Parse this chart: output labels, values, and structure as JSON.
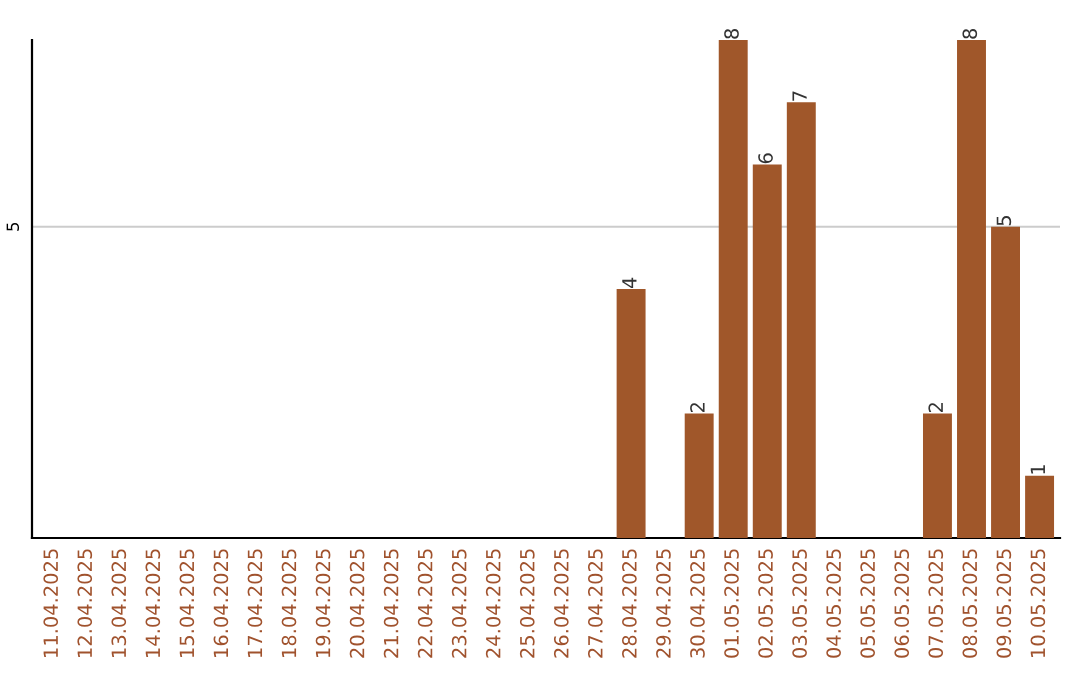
{
  "chart_data": {
    "type": "bar",
    "categories": [
      "11.04.2025",
      "12.04.2025",
      "13.04.2025",
      "14.04.2025",
      "15.04.2025",
      "16.04.2025",
      "17.04.2025",
      "18.04.2025",
      "19.04.2025",
      "20.04.2025",
      "21.04.2025",
      "22.04.2025",
      "23.04.2025",
      "24.04.2025",
      "25.04.2025",
      "26.04.2025",
      "27.04.2025",
      "28.04.2025",
      "29.04.2025",
      "30.04.2025",
      "01.05.2025",
      "02.05.2025",
      "03.05.2025",
      "04.05.2025",
      "05.05.2025",
      "06.05.2025",
      "07.05.2025",
      "08.05.2025",
      "09.05.2025",
      "10.05.2025"
    ],
    "values": [
      null,
      null,
      null,
      null,
      null,
      null,
      null,
      null,
      null,
      null,
      null,
      null,
      null,
      null,
      null,
      null,
      null,
      4,
      null,
      2,
      8,
      6,
      7,
      null,
      null,
      null,
      2,
      8,
      5,
      1
    ],
    "value_labels": [
      null,
      null,
      null,
      null,
      null,
      null,
      null,
      null,
      null,
      null,
      null,
      null,
      null,
      null,
      null,
      null,
      null,
      "4",
      null,
      "2",
      "8",
      "6",
      "7",
      null,
      null,
      null,
      "2",
      "8",
      "5",
      "1"
    ],
    "color": "#a0572a",
    "ylim": [
      0,
      8
    ],
    "yticks": [
      5
    ],
    "grid": "y"
  }
}
